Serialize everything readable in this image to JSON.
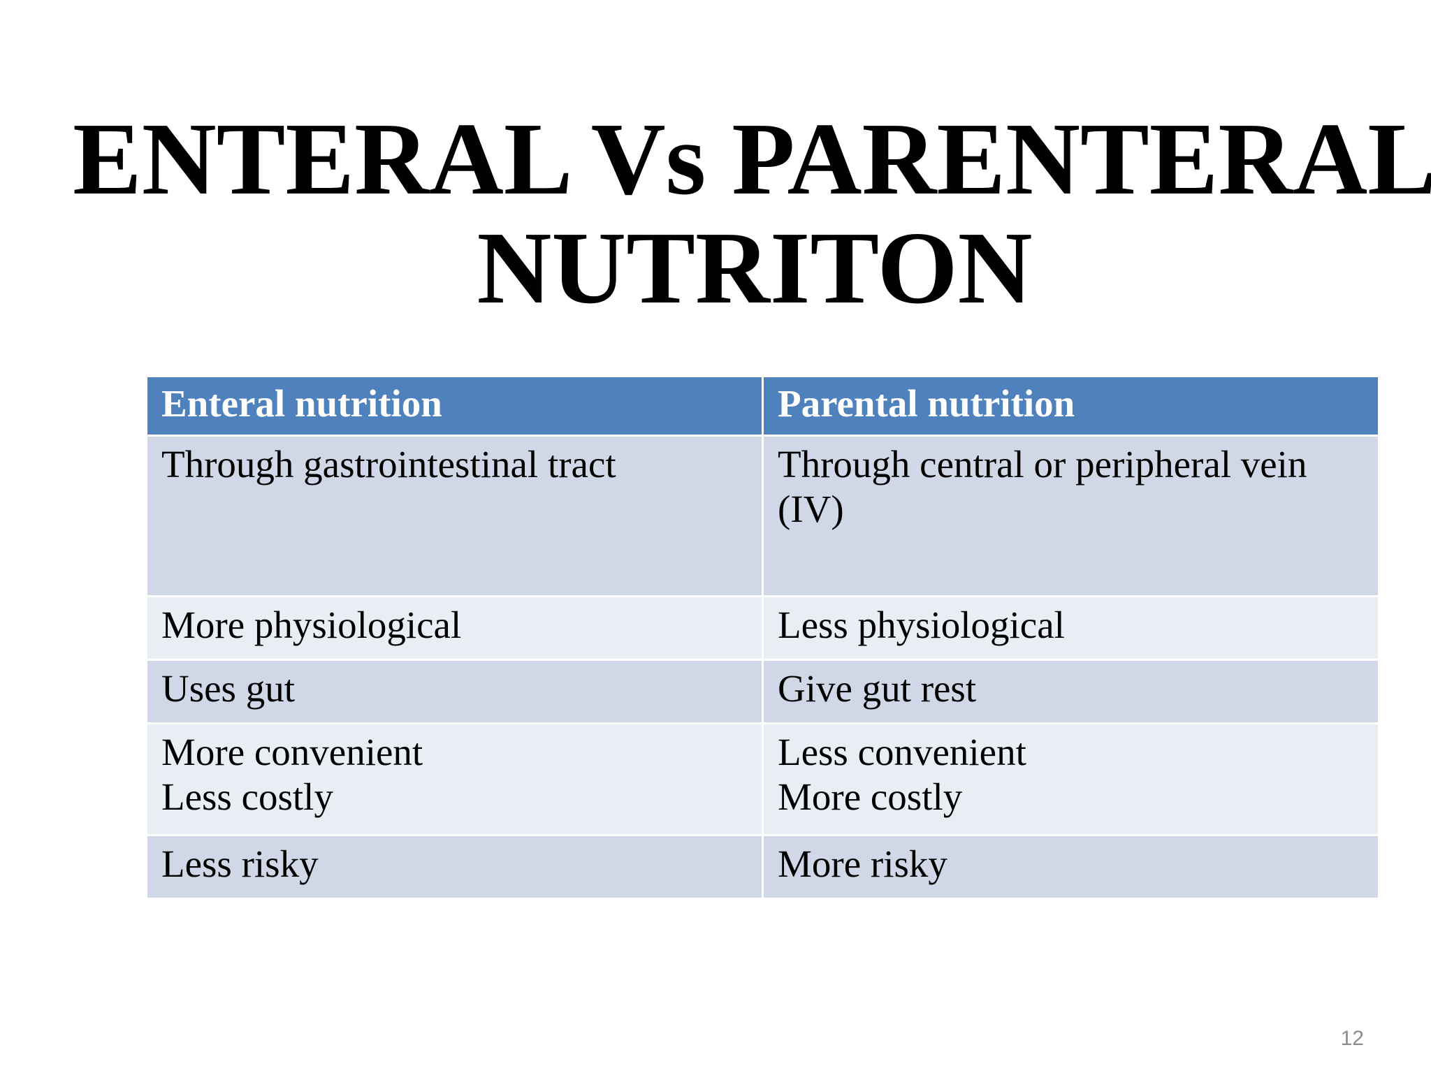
{
  "slide": {
    "title_line1": "ENTERAL Vs PARENTERAL",
    "title_line2": "NUTRITON",
    "page_number": "12"
  },
  "table": {
    "headers": [
      "Enteral nutrition",
      "Parental nutrition"
    ],
    "rows": [
      {
        "left": [
          "Through gastrointestinal tract"
        ],
        "right": [
          "Through central or peripheral vein",
          "(IV)"
        ]
      },
      {
        "left": [
          "More physiological"
        ],
        "right": [
          "Less physiological"
        ]
      },
      {
        "left": [
          "Uses gut"
        ],
        "right": [
          "Give gut rest"
        ]
      },
      {
        "left": [
          "More convenient",
          "Less costly"
        ],
        "right": [
          "Less convenient",
          "More costly"
        ]
      },
      {
        "left": [
          "Less risky"
        ],
        "right": [
          "More risky"
        ]
      }
    ]
  },
  "colors": {
    "header_bg": "#4f81bd",
    "row_band_dark": "#d0d8e8",
    "row_band_light": "#e9edf4"
  }
}
